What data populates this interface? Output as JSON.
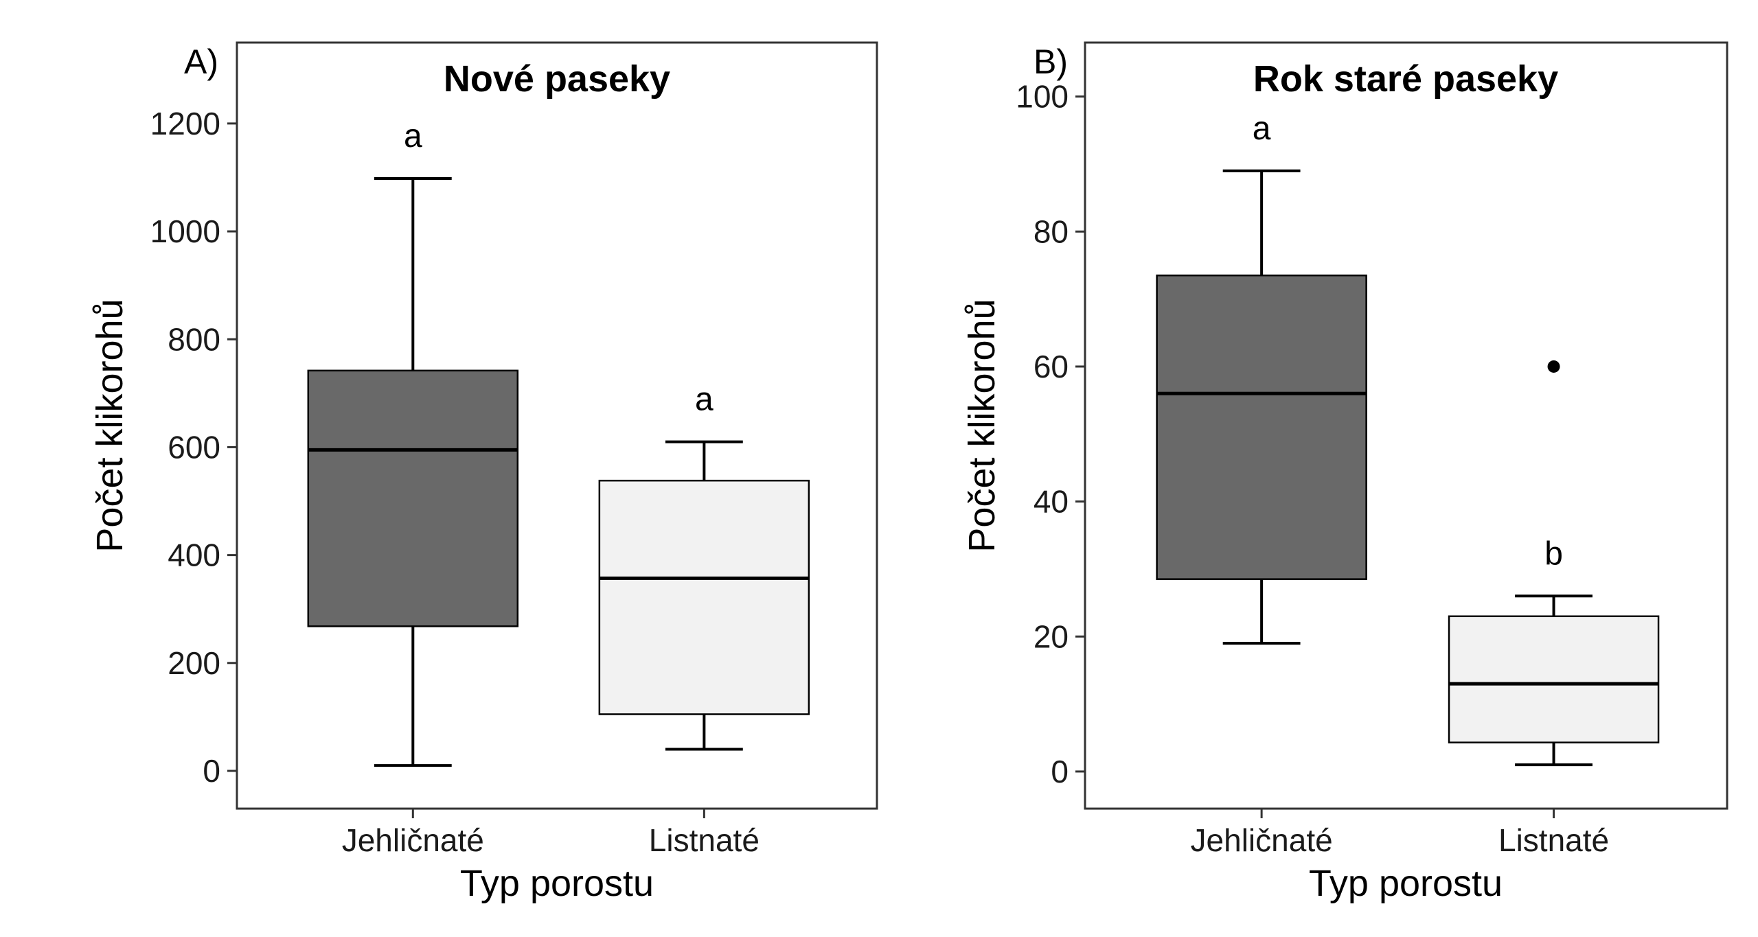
{
  "chart_data": [
    {
      "type": "box",
      "panel_label": "A)",
      "title": "Nové paseky",
      "xlabel": "Typ porostu",
      "ylabel": "Počet klikorohů",
      "ylim": [
        -70,
        1350
      ],
      "yticks": [
        0,
        200,
        400,
        600,
        800,
        1000,
        1200
      ],
      "categories": [
        "Jehličnaté",
        "Listnaté"
      ],
      "boxes": [
        {
          "category": "Jehličnaté",
          "whisker_low": 10,
          "q1": 268,
          "median": 595,
          "q3": 742,
          "whisker_high": 1098,
          "outliers": [],
          "fill": "#696969",
          "label": "a"
        },
        {
          "category": "Listnaté",
          "whisker_low": 40,
          "q1": 105,
          "median": 357,
          "q3": 538,
          "whisker_high": 610,
          "outliers": [],
          "fill": "#f2f2f2",
          "label": "a"
        }
      ],
      "grid": false
    },
    {
      "type": "box",
      "panel_label": "B)",
      "title": "Rok staré paseky",
      "xlabel": "Typ porostu",
      "ylabel": "Počet klikorohů",
      "ylim": [
        -5.5,
        108
      ],
      "yticks": [
        0,
        20,
        40,
        60,
        80,
        100
      ],
      "categories": [
        "Jehličnaté",
        "Listnaté"
      ],
      "boxes": [
        {
          "category": "Jehličnaté",
          "whisker_low": 19,
          "q1": 28.5,
          "median": 56,
          "q3": 73.5,
          "whisker_high": 89,
          "outliers": [],
          "fill": "#696969",
          "label": "a"
        },
        {
          "category": "Listnaté",
          "whisker_low": 1,
          "q1": 4.3,
          "median": 13,
          "q3": 23,
          "whisker_high": 26,
          "outliers": [
            60
          ],
          "fill": "#f2f2f2",
          "label": "b"
        }
      ],
      "grid": false
    }
  ]
}
